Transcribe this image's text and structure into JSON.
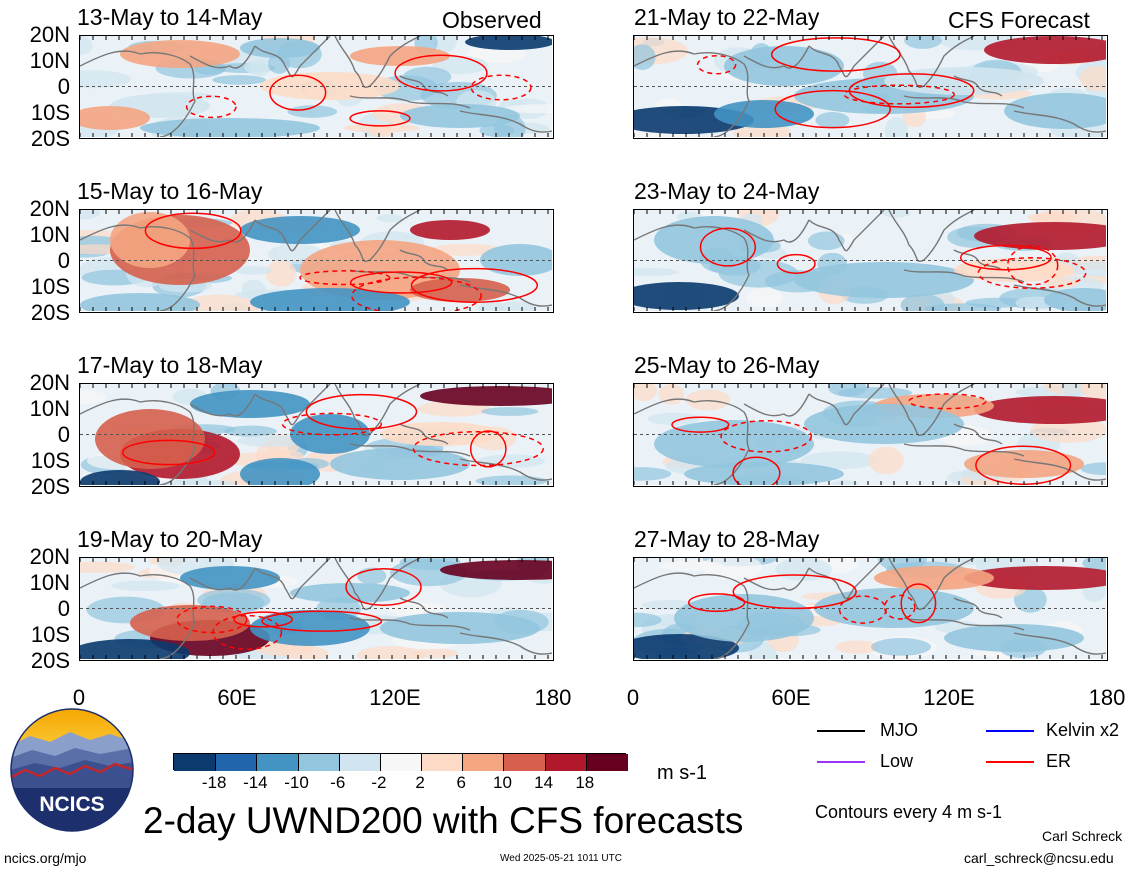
{
  "observed_label": "Observed",
  "forecast_label": "CFS Forecast",
  "panels_observed": [
    {
      "title": "13-May to 14-May"
    },
    {
      "title": "15-May to 16-May"
    },
    {
      "title": "17-May to 18-May"
    },
    {
      "title": "19-May to 20-May"
    }
  ],
  "panels_forecast": [
    {
      "title": "21-May to 22-May"
    },
    {
      "title": "23-May to 24-May"
    },
    {
      "title": "25-May to 26-May"
    },
    {
      "title": "27-May to 28-May"
    }
  ],
  "lat_labels": [
    "20N",
    "10N",
    "0",
    "10S",
    "20S"
  ],
  "lon_labels": [
    "0",
    "60E",
    "120E",
    "180"
  ],
  "colorbar": {
    "colors": [
      "#0a3a6e",
      "#2166ac",
      "#4393c3",
      "#92c5de",
      "#d1e5f0",
      "#f7f7f7",
      "#fddbc7",
      "#f4a582",
      "#d6604d",
      "#b2182b",
      "#67001f"
    ],
    "labels": [
      "-18",
      "-14",
      "-10",
      "-6",
      "-2",
      "2",
      "6",
      "10",
      "14",
      "18"
    ],
    "units": "m s-1"
  },
  "legend": {
    "items": [
      {
        "label": "MJO",
        "color": "#000000"
      },
      {
        "label": "Kelvin x2",
        "color": "#0000ff"
      },
      {
        "label": "Low",
        "color": "#9933ff"
      },
      {
        "label": "ER",
        "color": "#ff0000"
      }
    ],
    "contour_note": "Contours every 4 m s-1"
  },
  "logo_text": "NCICS",
  "main_title": "2-day UWND200 with CFS forecasts",
  "footer": {
    "url": "ncics.org/mjo",
    "timestamp": "Wed 2025-05-21 1011 UTC",
    "author": "Carl Schreck",
    "email": "carl_schreck@ncsu.edu"
  }
}
